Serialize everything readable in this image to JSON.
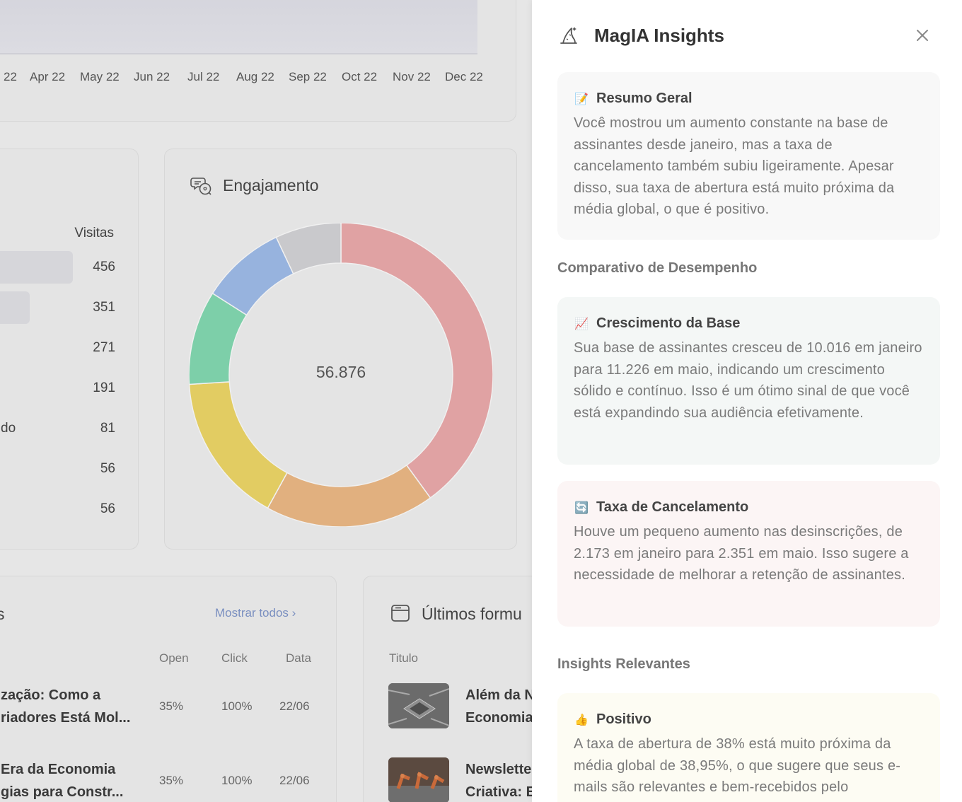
{
  "chart": {
    "months": [
      "22",
      "Apr 22",
      "May 22",
      "Jun 22",
      "Jul 22",
      "Aug 22",
      "Sep 22",
      "Oct 22",
      "Nov 22",
      "Dec 22"
    ]
  },
  "visits": {
    "header": "Visitas",
    "rows": [
      {
        "label": "",
        "value": "456",
        "bar_fraction": 1.0
      },
      {
        "label": "",
        "value": "351",
        "bar_fraction": 0.5
      },
      {
        "label": "",
        "value": "271",
        "bar_fraction": 0
      },
      {
        "label": "",
        "value": "191",
        "bar_fraction": 0
      },
      {
        "label": "do",
        "value": "81",
        "bar_fraction": 0
      },
      {
        "label": "",
        "value": "56",
        "bar_fraction": 0
      },
      {
        "label": "",
        "value": "56",
        "bar_fraction": 0
      }
    ]
  },
  "engagement": {
    "title": "Engajamento",
    "total": "56.876",
    "chart_data": {
      "type": "pie",
      "values": [
        40,
        18,
        16,
        10,
        9,
        7
      ],
      "colors": [
        "#e0a2a3",
        "#e1b07f",
        "#e2cc62",
        "#7dcfa9",
        "#97b3de",
        "#c9c9cc"
      ]
    }
  },
  "newsletters": {
    "title": "s",
    "show_all": "Mostrar todos",
    "columns": {
      "open": "Open",
      "click": "Click",
      "date": "Data"
    },
    "rows": [
      {
        "line1": "zação: Como a",
        "line2": "riadores Está Mol...",
        "open": "35%",
        "click": "100%",
        "date": "22/06"
      },
      {
        "line1": "Era da Economia",
        "line2": "gias para Constr...",
        "open": "35%",
        "click": "100%",
        "date": "22/06"
      }
    ]
  },
  "forms": {
    "title": "Últimos formu",
    "column": "Titulo",
    "rows": [
      {
        "line1": "Além da N",
        "line2": "Economia"
      },
      {
        "line1": "Newslette",
        "line2": "Criativa: E"
      }
    ]
  },
  "panel": {
    "title": "MagIA Insights",
    "summary": {
      "emoji": "📝",
      "title": "Resumo Geral",
      "text": "Você mostrou um aumento constante na base de assinantes desde janeiro, mas a taxa de cancelamento também subiu ligeiramente. Apesar disso, sua taxa de abertura está muito próxima da média global, o que é positivo."
    },
    "comparison_heading": "Comparativo de Desempenho",
    "growth": {
      "emoji": "📈",
      "title": "Crescimento da Base",
      "text": "Sua base de assinantes cresceu de 10.016 em janeiro para 11.226 em maio, indicando um crescimento sólido e contínuo. Isso é um ótimo sinal de que você está expandindo sua audiência efetivamente."
    },
    "churn": {
      "emoji": "🔄",
      "title": "Taxa de Cancelamento",
      "text": "Houve um pequeno aumento nas desinscrições, de 2.173 em janeiro para 2.351 em maio. Isso sugere a necessidade de melhorar a retenção de assinantes."
    },
    "insights_heading": "Insights Relevantes",
    "positive": {
      "emoji": "👍",
      "title": "Positivo",
      "text": "A taxa de abertura de 38% está muito próxima da média global de 38,95%, o que sugere que seus e-mails são relevantes e bem-recebidos pelo"
    }
  }
}
